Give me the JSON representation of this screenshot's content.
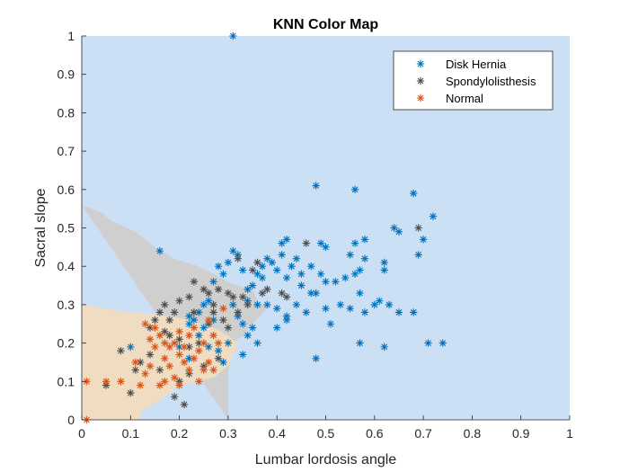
{
  "chart_data": {
    "type": "scatter",
    "title": "KNN Color Map",
    "xlabel": "Lumbar lordosis angle",
    "ylabel": "Sacral slope",
    "xlim": [
      0,
      1
    ],
    "ylim": [
      0,
      1
    ],
    "xticks": [
      "0",
      "0.1",
      "0.2",
      "0.3",
      "0.4",
      "0.5",
      "0.6",
      "0.7",
      "0.8",
      "0.9",
      "1"
    ],
    "yticks": [
      "0",
      "0.1",
      "0.2",
      "0.3",
      "0.4",
      "0.5",
      "0.6",
      "0.7",
      "0.8",
      "0.9",
      "1"
    ],
    "grid": false,
    "legend_position": "top-right",
    "regions": [
      {
        "class": "Disk Hernia",
        "color": "#cce0f5",
        "polygon": [
          [
            0,
            0
          ],
          [
            1,
            0
          ],
          [
            1,
            1
          ],
          [
            0,
            1
          ]
        ]
      },
      {
        "class": "Spondylolisthesis",
        "color": "#cfcfcf",
        "polygon": [
          [
            0,
            0.56
          ],
          [
            0.04,
            0.54
          ],
          [
            0.06,
            0.52
          ],
          [
            0.11,
            0.49
          ],
          [
            0.15,
            0.45
          ],
          [
            0.19,
            0.42
          ],
          [
            0.24,
            0.4
          ],
          [
            0.27,
            0.38
          ],
          [
            0.3,
            0.36
          ],
          [
            0.32,
            0.35
          ],
          [
            0.35,
            0.34
          ],
          [
            0.36,
            0.31
          ],
          [
            0.38,
            0.29
          ],
          [
            0.35,
            0.25
          ],
          [
            0.33,
            0.22
          ],
          [
            0.31,
            0.2
          ],
          [
            0.3,
            0.12
          ],
          [
            0.3,
            0
          ]
        ]
      },
      {
        "class": "Normal",
        "color": "#f0dcc0",
        "polygon": [
          [
            0,
            0.3
          ],
          [
            0.05,
            0.29
          ],
          [
            0.1,
            0.28
          ],
          [
            0.18,
            0.27
          ],
          [
            0.22,
            0.26
          ],
          [
            0.27,
            0.24
          ],
          [
            0.3,
            0.22
          ],
          [
            0.32,
            0.2
          ],
          [
            0.3,
            0.14
          ],
          [
            0.27,
            0.11
          ],
          [
            0.23,
            0.1
          ],
          [
            0.19,
            0.08
          ],
          [
            0.16,
            0.05
          ],
          [
            0.12,
            0.02
          ],
          [
            0.12,
            0
          ],
          [
            0,
            0
          ]
        ]
      }
    ],
    "series": [
      {
        "name": "Disk Hernia",
        "color": "#0072bd",
        "points": [
          [
            0.31,
            1.0
          ],
          [
            0.16,
            0.44
          ],
          [
            0.48,
            0.61
          ],
          [
            0.56,
            0.6
          ],
          [
            0.68,
            0.59
          ],
          [
            0.72,
            0.53
          ],
          [
            0.64,
            0.5
          ],
          [
            0.65,
            0.49
          ],
          [
            0.7,
            0.47
          ],
          [
            0.69,
            0.43
          ],
          [
            0.56,
            0.46
          ],
          [
            0.58,
            0.47
          ],
          [
            0.5,
            0.45
          ],
          [
            0.49,
            0.46
          ],
          [
            0.41,
            0.46
          ],
          [
            0.42,
            0.47
          ],
          [
            0.55,
            0.43
          ],
          [
            0.58,
            0.42
          ],
          [
            0.62,
            0.41
          ],
          [
            0.62,
            0.39
          ],
          [
            0.57,
            0.39
          ],
          [
            0.56,
            0.38
          ],
          [
            0.54,
            0.37
          ],
          [
            0.52,
            0.36
          ],
          [
            0.5,
            0.36
          ],
          [
            0.49,
            0.38
          ],
          [
            0.48,
            0.33
          ],
          [
            0.45,
            0.38
          ],
          [
            0.43,
            0.4
          ],
          [
            0.42,
            0.37
          ],
          [
            0.4,
            0.39
          ],
          [
            0.39,
            0.41
          ],
          [
            0.38,
            0.42
          ],
          [
            0.37,
            0.4
          ],
          [
            0.37,
            0.37
          ],
          [
            0.36,
            0.38
          ],
          [
            0.35,
            0.35
          ],
          [
            0.34,
            0.34
          ],
          [
            0.33,
            0.39
          ],
          [
            0.32,
            0.43
          ],
          [
            0.31,
            0.44
          ],
          [
            0.3,
            0.41
          ],
          [
            0.29,
            0.38
          ],
          [
            0.28,
            0.4
          ],
          [
            0.27,
            0.36
          ],
          [
            0.26,
            0.31
          ],
          [
            0.25,
            0.3
          ],
          [
            0.24,
            0.28
          ],
          [
            0.23,
            0.26
          ],
          [
            0.22,
            0.27
          ],
          [
            0.22,
            0.25
          ],
          [
            0.24,
            0.22
          ],
          [
            0.26,
            0.19
          ],
          [
            0.28,
            0.18
          ],
          [
            0.3,
            0.2
          ],
          [
            0.31,
            0.3
          ],
          [
            0.32,
            0.27
          ],
          [
            0.33,
            0.25
          ],
          [
            0.34,
            0.22
          ],
          [
            0.35,
            0.24
          ],
          [
            0.36,
            0.3
          ],
          [
            0.38,
            0.3
          ],
          [
            0.4,
            0.29
          ],
          [
            0.42,
            0.27
          ],
          [
            0.44,
            0.3
          ],
          [
            0.46,
            0.28
          ],
          [
            0.47,
            0.33
          ],
          [
            0.51,
            0.25
          ],
          [
            0.55,
            0.29
          ],
          [
            0.57,
            0.33
          ],
          [
            0.58,
            0.28
          ],
          [
            0.6,
            0.3
          ],
          [
            0.61,
            0.31
          ],
          [
            0.63,
            0.3
          ],
          [
            0.65,
            0.28
          ],
          [
            0.68,
            0.28
          ],
          [
            0.57,
            0.2
          ],
          [
            0.62,
            0.19
          ],
          [
            0.71,
            0.2
          ],
          [
            0.74,
            0.2
          ],
          [
            0.48,
            0.16
          ],
          [
            0.42,
            0.26
          ],
          [
            0.4,
            0.24
          ],
          [
            0.36,
            0.2
          ],
          [
            0.33,
            0.17
          ],
          [
            0.29,
            0.15
          ],
          [
            0.1,
            0.19
          ],
          [
            0.2,
            0.19
          ],
          [
            0.22,
            0.16
          ],
          [
            0.25,
            0.24
          ],
          [
            0.27,
            0.26
          ],
          [
            0.34,
            0.31
          ],
          [
            0.45,
            0.35
          ],
          [
            0.5,
            0.29
          ],
          [
            0.53,
            0.3
          ],
          [
            0.47,
            0.4
          ],
          [
            0.44,
            0.42
          ],
          [
            0.41,
            0.43
          ]
        ]
      },
      {
        "name": "Spondylolisthesis",
        "color": "#4d4d4d",
        "points": [
          [
            0.69,
            0.5
          ],
          [
            0.46,
            0.46
          ],
          [
            0.32,
            0.42
          ],
          [
            0.35,
            0.39
          ],
          [
            0.36,
            0.41
          ],
          [
            0.38,
            0.34
          ],
          [
            0.41,
            0.33
          ],
          [
            0.42,
            0.32
          ],
          [
            0.37,
            0.33
          ],
          [
            0.33,
            0.32
          ],
          [
            0.31,
            0.32
          ],
          [
            0.3,
            0.33
          ],
          [
            0.28,
            0.34
          ],
          [
            0.26,
            0.33
          ],
          [
            0.23,
            0.36
          ],
          [
            0.22,
            0.32
          ],
          [
            0.2,
            0.31
          ],
          [
            0.19,
            0.28
          ],
          [
            0.17,
            0.3
          ],
          [
            0.16,
            0.28
          ],
          [
            0.15,
            0.26
          ],
          [
            0.14,
            0.24
          ],
          [
            0.17,
            0.23
          ],
          [
            0.18,
            0.22
          ],
          [
            0.2,
            0.21
          ],
          [
            0.22,
            0.19
          ],
          [
            0.24,
            0.2
          ],
          [
            0.26,
            0.25
          ],
          [
            0.27,
            0.28
          ],
          [
            0.29,
            0.26
          ],
          [
            0.3,
            0.24
          ],
          [
            0.28,
            0.16
          ],
          [
            0.25,
            0.14
          ],
          [
            0.22,
            0.12
          ],
          [
            0.2,
            0.1
          ],
          [
            0.19,
            0.06
          ],
          [
            0.21,
            0.04
          ],
          [
            0.16,
            0.13
          ],
          [
            0.14,
            0.17
          ],
          [
            0.12,
            0.15
          ],
          [
            0.11,
            0.13
          ],
          [
            0.1,
            0.07
          ],
          [
            0.08,
            0.18
          ],
          [
            0.05,
            0.09
          ],
          [
            0.23,
            0.28
          ],
          [
            0.25,
            0.34
          ],
          [
            0.27,
            0.3
          ],
          [
            0.32,
            0.28
          ],
          [
            0.34,
            0.3
          ],
          [
            0.18,
            0.26
          ]
        ]
      },
      {
        "name": "Normal",
        "color": "#d95319",
        "points": [
          [
            0.01,
            0.0
          ],
          [
            0.01,
            0.1
          ],
          [
            0.05,
            0.1
          ],
          [
            0.08,
            0.1
          ],
          [
            0.12,
            0.09
          ],
          [
            0.11,
            0.15
          ],
          [
            0.13,
            0.12
          ],
          [
            0.14,
            0.21
          ],
          [
            0.13,
            0.25
          ],
          [
            0.15,
            0.19
          ],
          [
            0.16,
            0.22
          ],
          [
            0.17,
            0.16
          ],
          [
            0.17,
            0.2
          ],
          [
            0.18,
            0.19
          ],
          [
            0.18,
            0.14
          ],
          [
            0.19,
            0.2
          ],
          [
            0.2,
            0.17
          ],
          [
            0.2,
            0.23
          ],
          [
            0.21,
            0.19
          ],
          [
            0.21,
            0.15
          ],
          [
            0.22,
            0.13
          ],
          [
            0.22,
            0.22
          ],
          [
            0.23,
            0.16
          ],
          [
            0.24,
            0.18
          ],
          [
            0.24,
            0.1
          ],
          [
            0.25,
            0.2
          ],
          [
            0.25,
            0.13
          ],
          [
            0.26,
            0.15
          ],
          [
            0.27,
            0.22
          ],
          [
            0.28,
            0.2
          ],
          [
            0.29,
            0.29
          ],
          [
            0.27,
            0.13
          ],
          [
            0.19,
            0.11
          ],
          [
            0.17,
            0.1
          ],
          [
            0.16,
            0.09
          ],
          [
            0.15,
            0.24
          ],
          [
            0.23,
            0.24
          ],
          [
            0.26,
            0.26
          ],
          [
            0.14,
            0.14
          ],
          [
            0.2,
            0.09
          ]
        ]
      }
    ]
  }
}
